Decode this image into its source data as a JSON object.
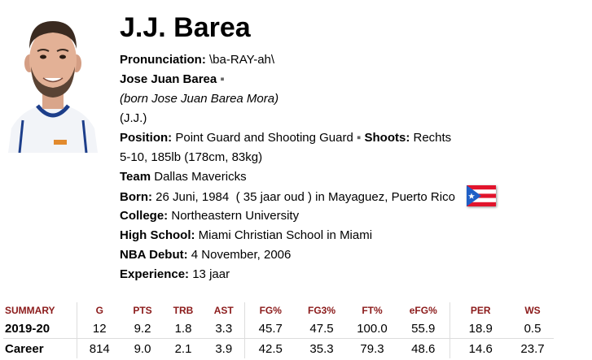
{
  "player": {
    "name": "J.J. Barea",
    "pronunciation_label": "Pronunciation",
    "pronunciation": "\\ba-RAY-ah\\",
    "full_name": "Jose Juan Barea",
    "born_as": "(born Jose Juan Barea Mora)",
    "nickname": "(J.J.)",
    "position_label": "Position:",
    "position": "Point Guard and Shooting Guard",
    "shoots_label": "Shoots:",
    "shoots": "Rechts",
    "size": "5-10, 185lb (178cm, 83kg)",
    "team_label": "Team",
    "team": "Dallas Mavericks",
    "born_label": "Born:",
    "born_date": "26 Juni, 1984",
    "age": "35 jaar oud",
    "born_in": ") in Mayaguez,",
    "born_place": "Puerto Rico",
    "college_label": "College:",
    "college": "Northeastern University",
    "highschool_label": "High School:",
    "highschool": "Miami Christian School in Miami",
    "debut_label": "NBA Debut:",
    "debut": "4 November, 2006",
    "experience_label": "Experience:",
    "experience": "13 jaar",
    "flag_icon": "puerto-rico-flag-icon",
    "colors": {
      "header_red": "#8b1a1a",
      "flag_red": "#e1142c",
      "flag_blue": "#1f5fc6"
    }
  },
  "stats": {
    "headers": [
      "SUMMARY",
      "G",
      "PTS",
      "TRB",
      "AST",
      "FG%",
      "FG3%",
      "FT%",
      "eFG%",
      "PER",
      "WS"
    ],
    "rows": [
      [
        "2019-20",
        "12",
        "9.2",
        "1.8",
        "3.3",
        "45.7",
        "47.5",
        "100.0",
        "55.9",
        "18.9",
        "0.5"
      ],
      [
        "Career",
        "814",
        "9.0",
        "2.1",
        "3.9",
        "42.5",
        "35.3",
        "79.3",
        "48.6",
        "14.6",
        "23.7"
      ]
    ]
  }
}
